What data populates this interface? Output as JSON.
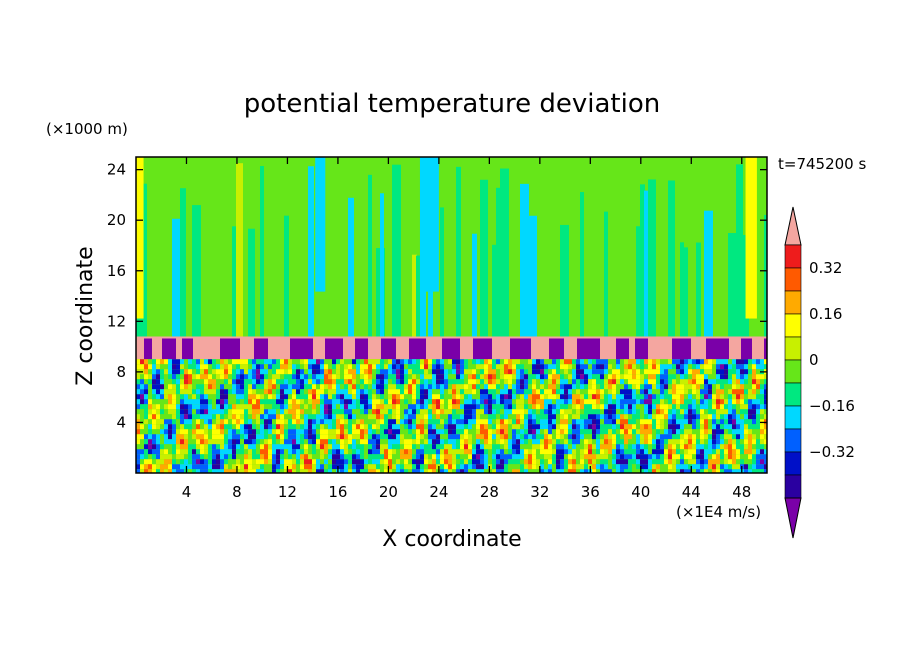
{
  "chart_data": {
    "type": "heatmap",
    "title": "potential temperature deviation",
    "xlabel": "X coordinate",
    "ylabel": "Z coordinate",
    "x_unit": "(×1E4 m/s)",
    "y_unit": "(×1000 m)",
    "time_label": "t=745200 s",
    "xlim": [
      0,
      50
    ],
    "ylim": [
      0,
      25
    ],
    "x_ticks": [
      4,
      8,
      12,
      16,
      20,
      24,
      28,
      32,
      36,
      40,
      44,
      48
    ],
    "x_tick_labels": [
      "4",
      "8",
      "12",
      "16",
      "20",
      "24",
      "28",
      "32",
      "36",
      "40",
      "44",
      "48"
    ],
    "y_ticks": [
      4,
      8,
      12,
      16,
      20,
      24
    ],
    "y_tick_labels": [
      "4",
      "8",
      "12",
      "16",
      "20",
      "24"
    ],
    "layers": [
      {
        "z": [
          0,
          9
        ],
        "pattern": "turbulent-convective",
        "range": [
          -0.4,
          0.4
        ]
      },
      {
        "z": [
          9,
          10.8
        ],
        "pattern": "stable-warm-band",
        "value": 0.4
      },
      {
        "z": [
          10.8,
          25
        ],
        "pattern": "vertical-streaks",
        "base_value": 0.0
      }
    ],
    "colorbar": {
      "levels": [
        -0.48,
        -0.4,
        -0.32,
        -0.24,
        -0.16,
        -0.08,
        0,
        0.08,
        0.16,
        0.24,
        0.32,
        0.4
      ],
      "tick_values": [
        0.32,
        0.16,
        0,
        -0.16,
        -0.32
      ],
      "tick_labels": [
        "0.32",
        "0.16",
        "0",
        "−0.16",
        "−0.32"
      ],
      "colors": [
        "#7a00a8",
        "#2a00a0",
        "#0010c8",
        "#0060ff",
        "#00d8ff",
        "#00e880",
        "#66e619",
        "#c8f000",
        "#ffff00",
        "#ffaa00",
        "#ff5a00",
        "#ee1c1c",
        "#f4a6a0"
      ]
    }
  }
}
